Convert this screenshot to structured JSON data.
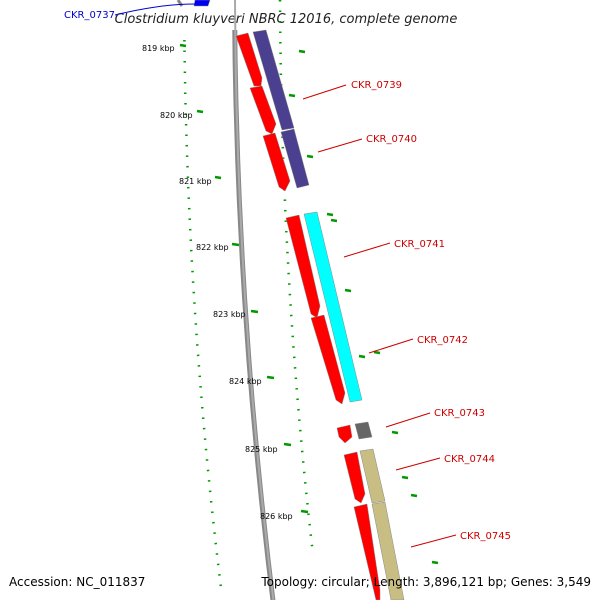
{
  "title": "Clostridium kluyveri NBRC 12016, complete genome",
  "footer": {
    "accession": "Accession: NC_011837",
    "topology": "Topology: circular; Length: 3,896,121 bp; Genes: 3,549"
  },
  "colors": {
    "cds": "#ff0000",
    "gene_dark": "#4b3f8f",
    "gene_cyan": "#00ffff",
    "gene_gray": "#666666",
    "gene_khaki": "#c8bd82",
    "gene_blue": "#0000ee",
    "label_red": "#cc0000",
    "label_blue": "#0000cc",
    "tick_green": "#009900"
  },
  "ticks": [
    {
      "label": "819 kbp"
    },
    {
      "label": "820 kbp"
    },
    {
      "label": "821 kbp"
    },
    {
      "label": "822 kbp"
    },
    {
      "label": "823 kbp"
    },
    {
      "label": "824 kbp"
    },
    {
      "label": "825 kbp"
    },
    {
      "label": "826 kbp"
    }
  ],
  "genes": [
    {
      "name": "CKR_0737",
      "color": "blue"
    },
    {
      "name": "CKR_0739",
      "color": "red"
    },
    {
      "name": "CKR_0740",
      "color": "red"
    },
    {
      "name": "CKR_0741",
      "color": "red"
    },
    {
      "name": "CKR_0742",
      "color": "red"
    },
    {
      "name": "CKR_0743",
      "color": "red"
    },
    {
      "name": "CKR_0744",
      "color": "red"
    },
    {
      "name": "CKR_0745",
      "color": "red"
    }
  ]
}
